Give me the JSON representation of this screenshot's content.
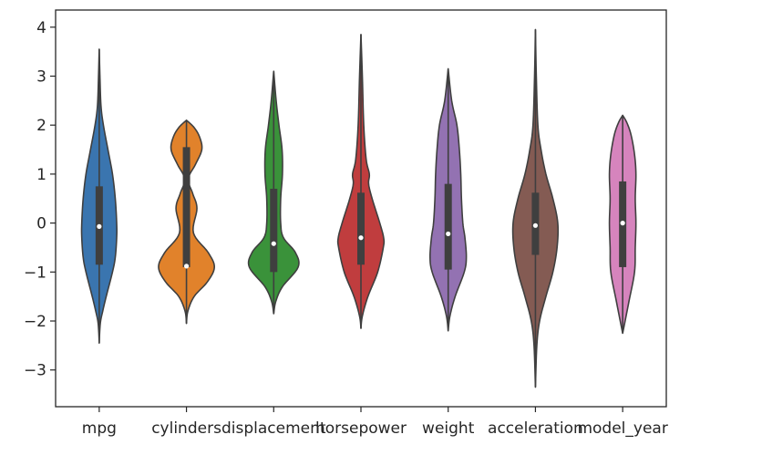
{
  "chart_data": {
    "type": "violin",
    "categories": [
      "mpg",
      "cylinders",
      "displacement",
      "horsepower",
      "weight",
      "acceleration",
      "model_year"
    ],
    "ylim": [
      -3.75,
      4.35
    ],
    "yticks": [
      4,
      3,
      2,
      1,
      0,
      -1,
      -2,
      -3
    ],
    "ytick_labels": [
      "4",
      "3",
      "2",
      "1",
      "0",
      "−1",
      "−2",
      "−3"
    ],
    "grid": false,
    "legend": "none",
    "series": [
      {
        "color": "#3a75af",
        "min": -2.45,
        "max": 3.55,
        "q1": -0.85,
        "q3": 0.75,
        "median": -0.07,
        "profile": [
          [
            -2.45,
            0.0
          ],
          [
            -2.2,
            0.015
          ],
          [
            -2.0,
            0.04
          ],
          [
            -1.8,
            0.1
          ],
          [
            -1.5,
            0.2
          ],
          [
            -1.0,
            0.38
          ],
          [
            -0.7,
            0.46
          ],
          [
            -0.3,
            0.5
          ],
          [
            0.0,
            0.5
          ],
          [
            0.5,
            0.46
          ],
          [
            1.0,
            0.38
          ],
          [
            1.5,
            0.25
          ],
          [
            2.0,
            0.12
          ],
          [
            2.4,
            0.05
          ],
          [
            3.0,
            0.02
          ],
          [
            3.55,
            0.0
          ]
        ]
      },
      {
        "color": "#e1822b",
        "min": -2.05,
        "max": 2.1,
        "q1": -0.9,
        "q3": 1.55,
        "median": -0.88,
        "profile": [
          [
            -2.05,
            0.0
          ],
          [
            -1.8,
            0.04
          ],
          [
            -1.5,
            0.22
          ],
          [
            -1.2,
            0.6
          ],
          [
            -0.9,
            0.8
          ],
          [
            -0.6,
            0.62
          ],
          [
            -0.2,
            0.2
          ],
          [
            0.3,
            0.3
          ],
          [
            0.6,
            0.18
          ],
          [
            0.9,
            0.05
          ],
          [
            1.2,
            0.26
          ],
          [
            1.5,
            0.44
          ],
          [
            1.75,
            0.38
          ],
          [
            1.95,
            0.22
          ],
          [
            2.1,
            0.0
          ]
        ]
      },
      {
        "color": "#3a923a",
        "min": -1.85,
        "max": 3.1,
        "q1": -1.0,
        "q3": 0.7,
        "median": -0.42,
        "profile": [
          [
            -1.85,
            0.0
          ],
          [
            -1.6,
            0.06
          ],
          [
            -1.3,
            0.25
          ],
          [
            -0.9,
            0.7
          ],
          [
            -0.6,
            0.62
          ],
          [
            -0.3,
            0.28
          ],
          [
            0.0,
            0.2
          ],
          [
            0.5,
            0.2
          ],
          [
            1.0,
            0.25
          ],
          [
            1.5,
            0.24
          ],
          [
            2.0,
            0.15
          ],
          [
            2.5,
            0.07
          ],
          [
            3.1,
            0.0
          ]
        ]
      },
      {
        "color": "#c03d3e",
        "min": -2.15,
        "max": 3.85,
        "q1": -0.85,
        "q3": 0.62,
        "median": -0.3,
        "profile": [
          [
            -2.15,
            0.0
          ],
          [
            -1.9,
            0.04
          ],
          [
            -1.5,
            0.2
          ],
          [
            -1.0,
            0.48
          ],
          [
            -0.5,
            0.64
          ],
          [
            -0.3,
            0.65
          ],
          [
            0.0,
            0.54
          ],
          [
            0.5,
            0.32
          ],
          [
            0.8,
            0.22
          ],
          [
            1.0,
            0.24
          ],
          [
            1.3,
            0.15
          ],
          [
            2.0,
            0.08
          ],
          [
            3.0,
            0.04
          ],
          [
            3.85,
            0.0
          ]
        ]
      },
      {
        "color": "#9372b2",
        "min": -2.2,
        "max": 3.15,
        "q1": -0.95,
        "q3": 0.8,
        "median": -0.22,
        "profile": [
          [
            -2.2,
            0.0
          ],
          [
            -1.9,
            0.05
          ],
          [
            -1.5,
            0.2
          ],
          [
            -1.0,
            0.46
          ],
          [
            -0.7,
            0.52
          ],
          [
            -0.3,
            0.48
          ],
          [
            0.0,
            0.42
          ],
          [
            0.5,
            0.38
          ],
          [
            1.0,
            0.36
          ],
          [
            1.5,
            0.32
          ],
          [
            2.0,
            0.25
          ],
          [
            2.5,
            0.1
          ],
          [
            3.15,
            0.0
          ]
        ]
      },
      {
        "color": "#845b53",
        "min": -3.35,
        "max": 3.95,
        "q1": -0.65,
        "q3": 0.62,
        "median": -0.05,
        "profile": [
          [
            -3.35,
            0.0
          ],
          [
            -2.5,
            0.04
          ],
          [
            -2.0,
            0.12
          ],
          [
            -1.5,
            0.3
          ],
          [
            -1.0,
            0.5
          ],
          [
            -0.5,
            0.62
          ],
          [
            0.0,
            0.64
          ],
          [
            0.5,
            0.5
          ],
          [
            1.0,
            0.3
          ],
          [
            1.5,
            0.16
          ],
          [
            2.0,
            0.07
          ],
          [
            3.0,
            0.025
          ],
          [
            3.95,
            0.0
          ]
        ]
      },
      {
        "color": "#d684bd",
        "min": -2.25,
        "max": 2.2,
        "q1": -0.9,
        "q3": 0.85,
        "median": 0.0,
        "profile": [
          [
            -2.25,
            0.0
          ],
          [
            -2.0,
            0.07
          ],
          [
            -1.6,
            0.18
          ],
          [
            -1.0,
            0.34
          ],
          [
            -0.5,
            0.36
          ],
          [
            0.0,
            0.38
          ],
          [
            0.5,
            0.36
          ],
          [
            1.0,
            0.38
          ],
          [
            1.4,
            0.34
          ],
          [
            1.8,
            0.24
          ],
          [
            2.05,
            0.12
          ],
          [
            2.2,
            0.0
          ]
        ]
      }
    ]
  }
}
